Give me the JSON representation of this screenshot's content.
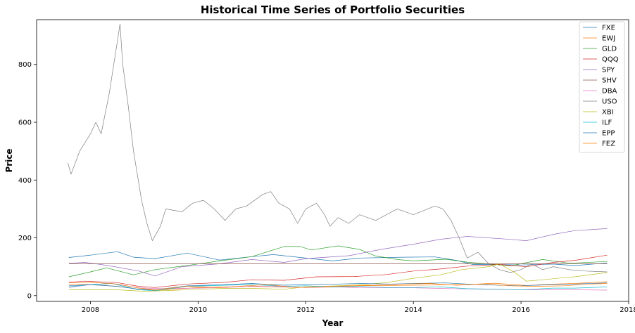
{
  "chart_data": {
    "type": "line",
    "title": "Historical Time Series of Portfolio Securities",
    "xlabel": "Year",
    "ylabel": "Price",
    "xlim": [
      2007.0,
      2018.0
    ],
    "ylim": [
      -20,
      955
    ],
    "x_ticks": [
      "2008",
      "2010",
      "2012",
      "2014",
      "2016",
      "2018"
    ],
    "y_ticks": [
      "0",
      "200",
      "400",
      "600",
      "800"
    ],
    "legend_position": "top-right",
    "grid": false,
    "series": [
      {
        "name": "FXE",
        "color": "#1f77b4",
        "points": [
          [
            2007.6,
            132
          ],
          [
            2008.0,
            140
          ],
          [
            2008.5,
            152
          ],
          [
            2008.8,
            133
          ],
          [
            2009.2,
            128
          ],
          [
            2009.8,
            147
          ],
          [
            2010.4,
            123
          ],
          [
            2011.0,
            135
          ],
          [
            2011.4,
            142
          ],
          [
            2011.9,
            132
          ],
          [
            2012.5,
            120
          ],
          [
            2013.0,
            130
          ],
          [
            2013.8,
            133
          ],
          [
            2014.4,
            134
          ],
          [
            2014.8,
            122
          ],
          [
            2015.1,
            108
          ],
          [
            2015.5,
            108
          ],
          [
            2016.0,
            106
          ],
          [
            2016.6,
            109
          ],
          [
            2017.0,
            104
          ],
          [
            2017.6,
            113
          ]
        ]
      },
      {
        "name": "EWJ",
        "color": "#ff7f0e",
        "points": [
          [
            2007.6,
            40
          ],
          [
            2008.0,
            38
          ],
          [
            2008.5,
            32
          ],
          [
            2008.9,
            22
          ],
          [
            2009.2,
            18
          ],
          [
            2010.0,
            28
          ],
          [
            2011.0,
            32
          ],
          [
            2012.0,
            28
          ],
          [
            2013.0,
            34
          ],
          [
            2014.0,
            36
          ],
          [
            2015.0,
            38
          ],
          [
            2015.5,
            43
          ],
          [
            2016.1,
            35
          ],
          [
            2016.6,
            40
          ],
          [
            2017.0,
            42
          ],
          [
            2017.6,
            48
          ]
        ]
      },
      {
        "name": "GLD",
        "color": "#2ca02c",
        "points": [
          [
            2007.6,
            65
          ],
          [
            2008.0,
            82
          ],
          [
            2008.3,
            96
          ],
          [
            2008.8,
            72
          ],
          [
            2009.2,
            90
          ],
          [
            2009.9,
            107
          ],
          [
            2010.4,
            120
          ],
          [
            2011.0,
            135
          ],
          [
            2011.6,
            170
          ],
          [
            2011.9,
            170
          ],
          [
            2012.1,
            158
          ],
          [
            2012.6,
            172
          ],
          [
            2013.0,
            160
          ],
          [
            2013.3,
            137
          ],
          [
            2013.7,
            125
          ],
          [
            2014.0,
            120
          ],
          [
            2014.6,
            126
          ],
          [
            2015.0,
            116
          ],
          [
            2015.8,
            103
          ],
          [
            2016.4,
            125
          ],
          [
            2016.9,
            112
          ],
          [
            2017.6,
            118
          ]
        ]
      },
      {
        "name": "QQQ",
        "color": "#d62728",
        "points": [
          [
            2007.6,
            46
          ],
          [
            2007.9,
            50
          ],
          [
            2008.5,
            45
          ],
          [
            2008.9,
            32
          ],
          [
            2009.2,
            28
          ],
          [
            2009.8,
            40
          ],
          [
            2010.5,
            46
          ],
          [
            2011.0,
            55
          ],
          [
            2011.6,
            53
          ],
          [
            2012.2,
            65
          ],
          [
            2012.9,
            66
          ],
          [
            2013.5,
            73
          ],
          [
            2014.0,
            85
          ],
          [
            2014.5,
            92
          ],
          [
            2015.0,
            102
          ],
          [
            2015.6,
            108
          ],
          [
            2016.1,
            100
          ],
          [
            2016.6,
            115
          ],
          [
            2017.0,
            122
          ],
          [
            2017.6,
            140
          ]
        ]
      },
      {
        "name": "SPY",
        "color": "#9467bd",
        "points": [
          [
            2007.6,
            112
          ],
          [
            2007.9,
            115
          ],
          [
            2008.3,
            105
          ],
          [
            2008.9,
            85
          ],
          [
            2009.2,
            68
          ],
          [
            2009.7,
            100
          ],
          [
            2010.4,
            110
          ],
          [
            2011.0,
            125
          ],
          [
            2011.6,
            115
          ],
          [
            2012.0,
            128
          ],
          [
            2012.8,
            138
          ],
          [
            2013.4,
            160
          ],
          [
            2014.0,
            178
          ],
          [
            2014.5,
            195
          ],
          [
            2015.0,
            205
          ],
          [
            2015.7,
            196
          ],
          [
            2016.1,
            190
          ],
          [
            2016.6,
            212
          ],
          [
            2017.0,
            225
          ],
          [
            2017.6,
            232
          ]
        ]
      },
      {
        "name": "SHV",
        "color": "#8c564b",
        "points": [
          [
            2007.6,
            110
          ],
          [
            2008.5,
            110
          ],
          [
            2009.5,
            110
          ],
          [
            2010.5,
            110
          ],
          [
            2011.5,
            110
          ],
          [
            2012.5,
            110
          ],
          [
            2013.5,
            110
          ],
          [
            2014.5,
            110
          ],
          [
            2015.5,
            110
          ],
          [
            2016.5,
            110
          ],
          [
            2017.6,
            110
          ]
        ]
      },
      {
        "name": "DBA",
        "color": "#e377c2",
        "points": [
          [
            2007.6,
            28
          ],
          [
            2008.0,
            38
          ],
          [
            2008.4,
            42
          ],
          [
            2008.9,
            27
          ],
          [
            2009.3,
            24
          ],
          [
            2010.0,
            26
          ],
          [
            2010.5,
            28
          ],
          [
            2011.0,
            33
          ],
          [
            2011.5,
            31
          ],
          [
            2012.0,
            28
          ],
          [
            2012.6,
            30
          ],
          [
            2013.0,
            27
          ],
          [
            2014.0,
            27
          ],
          [
            2014.5,
            25
          ],
          [
            2015.0,
            23
          ],
          [
            2016.0,
            20
          ],
          [
            2017.0,
            20
          ],
          [
            2017.6,
            19
          ]
        ]
      },
      {
        "name": "USO",
        "color": "#7f7f7f",
        "points": [
          [
            2007.58,
            460
          ],
          [
            2007.64,
            420
          ],
          [
            2007.8,
            500
          ],
          [
            2008.0,
            560
          ],
          [
            2008.1,
            600
          ],
          [
            2008.2,
            560
          ],
          [
            2008.35,
            700
          ],
          [
            2008.5,
            880
          ],
          [
            2008.55,
            940
          ],
          [
            2008.6,
            800
          ],
          [
            2008.7,
            660
          ],
          [
            2008.8,
            500
          ],
          [
            2008.95,
            330
          ],
          [
            2009.05,
            250
          ],
          [
            2009.15,
            190
          ],
          [
            2009.3,
            240
          ],
          [
            2009.4,
            300
          ],
          [
            2009.7,
            290
          ],
          [
            2009.9,
            320
          ],
          [
            2010.1,
            330
          ],
          [
            2010.3,
            300
          ],
          [
            2010.5,
            260
          ],
          [
            2010.7,
            300
          ],
          [
            2010.9,
            310
          ],
          [
            2011.2,
            350
          ],
          [
            2011.35,
            360
          ],
          [
            2011.5,
            320
          ],
          [
            2011.7,
            300
          ],
          [
            2011.85,
            250
          ],
          [
            2012.0,
            300
          ],
          [
            2012.2,
            320
          ],
          [
            2012.35,
            280
          ],
          [
            2012.45,
            240
          ],
          [
            2012.6,
            270
          ],
          [
            2012.8,
            250
          ],
          [
            2013.0,
            280
          ],
          [
            2013.3,
            260
          ],
          [
            2013.5,
            280
          ],
          [
            2013.7,
            300
          ],
          [
            2014.0,
            280
          ],
          [
            2014.4,
            310
          ],
          [
            2014.55,
            300
          ],
          [
            2014.7,
            260
          ],
          [
            2014.85,
            200
          ],
          [
            2015.0,
            130
          ],
          [
            2015.2,
            150
          ],
          [
            2015.4,
            110
          ],
          [
            2015.6,
            90
          ],
          [
            2015.8,
            80
          ],
          [
            2016.0,
            90
          ],
          [
            2016.2,
            110
          ],
          [
            2016.4,
            90
          ],
          [
            2016.6,
            100
          ],
          [
            2016.9,
            90
          ],
          [
            2017.2,
            85
          ],
          [
            2017.6,
            82
          ]
        ]
      },
      {
        "name": "XBI",
        "color": "#bcbd22",
        "points": [
          [
            2007.6,
            20
          ],
          [
            2008.0,
            20
          ],
          [
            2008.5,
            20
          ],
          [
            2009.0,
            15
          ],
          [
            2009.5,
            18
          ],
          [
            2010.0,
            22
          ],
          [
            2010.5,
            25
          ],
          [
            2011.0,
            25
          ],
          [
            2011.6,
            22
          ],
          [
            2012.0,
            30
          ],
          [
            2012.6,
            34
          ],
          [
            2013.0,
            38
          ],
          [
            2013.5,
            45
          ],
          [
            2014.0,
            60
          ],
          [
            2014.5,
            72
          ],
          [
            2014.9,
            90
          ],
          [
            2015.4,
            100
          ],
          [
            2015.6,
            110
          ],
          [
            2015.9,
            78
          ],
          [
            2016.1,
            50
          ],
          [
            2016.4,
            55
          ],
          [
            2016.8,
            62
          ],
          [
            2017.0,
            65
          ],
          [
            2017.6,
            80
          ]
        ]
      },
      {
        "name": "ILF",
        "color": "#17becf",
        "points": [
          [
            2007.6,
            30
          ],
          [
            2008.0,
            38
          ],
          [
            2008.4,
            42
          ],
          [
            2008.9,
            20
          ],
          [
            2009.2,
            17
          ],
          [
            2009.8,
            32
          ],
          [
            2010.5,
            36
          ],
          [
            2011.0,
            38
          ],
          [
            2011.6,
            32
          ],
          [
            2012.0,
            34
          ],
          [
            2012.5,
            30
          ],
          [
            2013.0,
            32
          ],
          [
            2013.5,
            28
          ],
          [
            2014.0,
            28
          ],
          [
            2014.5,
            30
          ],
          [
            2015.0,
            24
          ],
          [
            2015.6,
            22
          ],
          [
            2016.0,
            20
          ],
          [
            2016.6,
            26
          ],
          [
            2017.0,
            26
          ],
          [
            2017.6,
            30
          ]
        ]
      },
      {
        "name": "EPP",
        "color": "#1f77b4",
        "points": [
          [
            2007.6,
            34
          ],
          [
            2008.0,
            38
          ],
          [
            2008.5,
            32
          ],
          [
            2008.9,
            22
          ],
          [
            2009.2,
            20
          ],
          [
            2009.8,
            34
          ],
          [
            2010.5,
            38
          ],
          [
            2011.0,
            42
          ],
          [
            2011.6,
            36
          ],
          [
            2012.0,
            38
          ],
          [
            2012.6,
            40
          ],
          [
            2013.0,
            42
          ],
          [
            2013.6,
            40
          ],
          [
            2014.0,
            42
          ],
          [
            2014.6,
            44
          ],
          [
            2015.0,
            40
          ],
          [
            2015.6,
            36
          ],
          [
            2016.0,
            34
          ],
          [
            2016.6,
            38
          ],
          [
            2017.0,
            40
          ],
          [
            2017.6,
            44
          ]
        ]
      },
      {
        "name": "FEZ",
        "color": "#ff7f0e",
        "points": [
          [
            2007.6,
            44
          ],
          [
            2008.0,
            46
          ],
          [
            2008.5,
            40
          ],
          [
            2008.9,
            26
          ],
          [
            2009.2,
            20
          ],
          [
            2009.8,
            32
          ],
          [
            2010.4,
            28
          ],
          [
            2010.9,
            34
          ],
          [
            2011.3,
            38
          ],
          [
            2011.8,
            28
          ],
          [
            2012.3,
            30
          ],
          [
            2012.8,
            34
          ],
          [
            2013.3,
            36
          ],
          [
            2013.8,
            40
          ],
          [
            2014.3,
            42
          ],
          [
            2014.8,
            36
          ],
          [
            2015.3,
            40
          ],
          [
            2015.8,
            34
          ],
          [
            2016.3,
            32
          ],
          [
            2016.8,
            34
          ],
          [
            2017.3,
            40
          ],
          [
            2017.6,
            42
          ]
        ]
      }
    ]
  }
}
